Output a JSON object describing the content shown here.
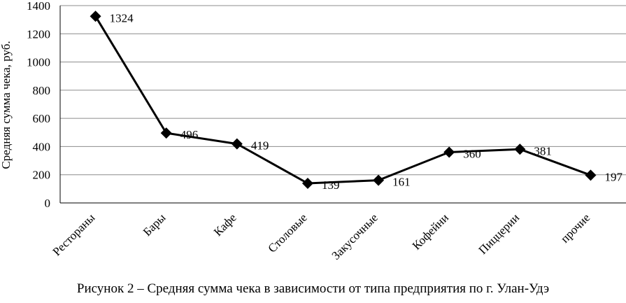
{
  "chart_data": {
    "type": "line",
    "categories": [
      "Рестораны",
      "Бары",
      "Кафе",
      "Столовые",
      "Закусочные",
      "Кофейни",
      "Пиццерии",
      "прочие"
    ],
    "series": [
      {
        "values": [
          1324,
          496,
          419,
          139,
          161,
          360,
          381,
          197
        ]
      }
    ],
    "data_labels": [
      "1324",
      "496",
      "419",
      "139",
      "161",
      "360",
      "381",
      "197"
    ],
    "ylabel": "Средняя сумма чека, руб.",
    "ylim": [
      0,
      1400
    ],
    "yticks": [
      0,
      200,
      400,
      600,
      800,
      1000,
      1200,
      1400
    ],
    "grid": true,
    "marker": "diamond",
    "line_color": "#000000"
  },
  "caption": "Рисунок 2 – Средняя сумма чека в зависимости от типа предприятия по г. Улан-Удэ"
}
